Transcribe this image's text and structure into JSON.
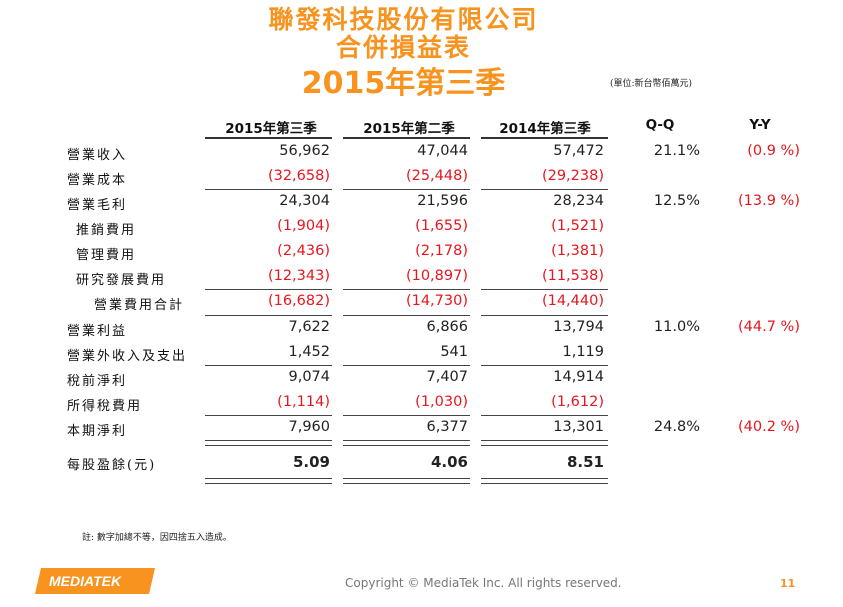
{
  "title": {
    "company": "聯發科技股份有限公司",
    "statement": "合併損益表",
    "period_year": "2015",
    "period_rest": "年第三季"
  },
  "unit_note": "(單位:新台幣佰萬元)",
  "headers": {
    "c1": "2015年第三季",
    "c2": "2015年第二季",
    "c3": "2014年第三季",
    "qq": "Q-Q",
    "yy": "Y-Y"
  },
  "rows": [
    {
      "label": "營業收入",
      "c1": "56,962",
      "c2": "47,044",
      "c3": "57,472",
      "qq": "21.1%",
      "yy": "(0.9 %)"
    },
    {
      "label": "營業成本",
      "c1": "(32,658)",
      "c2": "(25,448)",
      "c3": "(29,238)",
      "qq": "",
      "yy": ""
    },
    {
      "label": "營業毛利",
      "c1": "24,304",
      "c2": "21,596",
      "c3": "28,234",
      "qq": "12.5%",
      "yy": "(13.9 %)"
    },
    {
      "label": "推銷費用",
      "c1": "(1,904)",
      "c2": "(1,655)",
      "c3": "(1,521)",
      "qq": "",
      "yy": ""
    },
    {
      "label": "管理費用",
      "c1": "(2,436)",
      "c2": "(2,178)",
      "c3": "(1,381)",
      "qq": "",
      "yy": ""
    },
    {
      "label": "研究發展費用",
      "c1": "(12,343)",
      "c2": "(10,897)",
      "c3": "(11,538)",
      "qq": "",
      "yy": ""
    },
    {
      "label": "營業費用合計",
      "c1": "(16,682)",
      "c2": "(14,730)",
      "c3": "(14,440)",
      "qq": "",
      "yy": ""
    },
    {
      "label": "營業利益",
      "c1": "7,622",
      "c2": "6,866",
      "c3": "13,794",
      "qq": "11.0%",
      "yy": "(44.7 %)"
    },
    {
      "label": "營業外收入及支出",
      "c1": "1,452",
      "c2": "541",
      "c3": "1,119",
      "qq": "",
      "yy": ""
    },
    {
      "label": "稅前淨利",
      "c1": "9,074",
      "c2": "7,407",
      "c3": "14,914",
      "qq": "",
      "yy": ""
    },
    {
      "label": "所得稅費用",
      "c1": "(1,114)",
      "c2": "(1,030)",
      "c3": "(1,612)",
      "qq": "",
      "yy": ""
    },
    {
      "label": "本期淨利",
      "c1": "7,960",
      "c2": "6,377",
      "c3": "13,301",
      "qq": "24.8%",
      "yy": "(40.2 %)"
    },
    {
      "label": "每股盈餘(元)",
      "c1": "5.09",
      "c2": "4.06",
      "c3": "8.51",
      "qq": "",
      "yy": ""
    }
  ],
  "footnote": "註: 數字加總不等，因四捨五入造成。",
  "footer": {
    "logo_text": "MEDIATEK",
    "copyright": "Copyright © MediaTek Inc. All rights reserved.",
    "page": "11"
  },
  "colors": {
    "accent": "#f7931e",
    "negative": "#e8161e"
  }
}
